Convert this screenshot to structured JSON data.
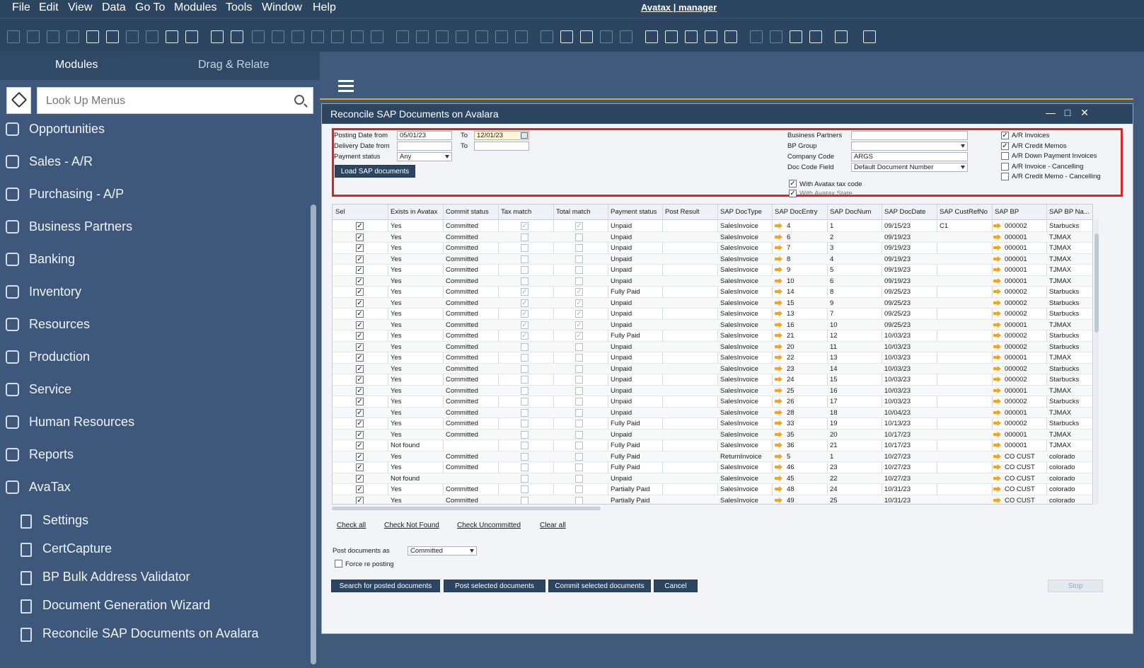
{
  "menubar": {
    "items": [
      "File",
      "Edit",
      "View",
      "Data",
      "Go To",
      "Modules",
      "Tools",
      "Window",
      "Help"
    ],
    "app_title": "Avatax | manager"
  },
  "left_panel": {
    "tabs": [
      "Modules",
      "Drag & Relate"
    ],
    "lookup_placeholder": "Look Up Menus",
    "modules": [
      {
        "label": "Opportunities",
        "icon": "opportunities-icon"
      },
      {
        "label": "Sales - A/R",
        "icon": "sales-icon"
      },
      {
        "label": "Purchasing - A/P",
        "icon": "purchasing-icon"
      },
      {
        "label": "Business Partners",
        "icon": "business-partners-icon"
      },
      {
        "label": "Banking",
        "icon": "banking-icon"
      },
      {
        "label": "Inventory",
        "icon": "inventory-icon"
      },
      {
        "label": "Resources",
        "icon": "resources-icon"
      },
      {
        "label": "Production",
        "icon": "production-icon"
      },
      {
        "label": "Service",
        "icon": "service-icon"
      },
      {
        "label": "Human Resources",
        "icon": "human-resources-icon"
      },
      {
        "label": "Reports",
        "icon": "reports-icon"
      },
      {
        "label": "AvaTax",
        "icon": "avatax-icon"
      }
    ],
    "avatax_sub": [
      "Settings",
      "CertCapture",
      "BP Bulk Address Validator",
      "Document Generation Wizard",
      "Reconcile SAP Documents on Avalara"
    ]
  },
  "window": {
    "title": "Reconcile SAP Documents on Avalara",
    "filters": {
      "posting_date_from_label": "Posting Date from",
      "posting_date_from": "05/01/23",
      "to_label": "To",
      "posting_date_to": "12/01/23",
      "delivery_date_from_label": "Delivery Date from",
      "delivery_date_from": "",
      "delivery_date_to": "",
      "payment_status_label": "Payment status",
      "payment_status": "Any",
      "load_button": "Load SAP documents",
      "business_partners_label": "Business Partners",
      "business_partners": "",
      "bp_group_label": "BP Group",
      "bp_group": "",
      "company_code_label": "Company Code",
      "company_code": "ARGS",
      "doc_code_field_label": "Doc Code Field",
      "doc_code_field": "Default Document Number",
      "with_avatax_tax_code": "With Avatax tax code",
      "with_avatax_state": "With Avatax State",
      "doc_types": [
        {
          "label": "A/R Invoices",
          "checked": true
        },
        {
          "label": "A/R Credit Memos",
          "checked": true
        },
        {
          "label": "A/R Down Payment Invoices",
          "checked": false
        },
        {
          "label": "A/R Invoice - Cancelling",
          "checked": false
        },
        {
          "label": "A/R Credit Memo - Cancelling",
          "checked": false
        }
      ]
    },
    "grid": {
      "columns": [
        "Sel",
        "Exists in Avatax",
        "Commit status",
        "Tax match",
        "Total match",
        "Payment status",
        "Post Result",
        "SAP DocType",
        "SAP DocEntry",
        "SAP DocNum",
        "SAP DocDate",
        "SAP CustRefNo",
        "SAP BP",
        "SAP BP Na..."
      ],
      "rows": [
        {
          "exists": "Yes",
          "commit": "Committed",
          "tax": true,
          "total": true,
          "pay": "Unpaid",
          "result": "",
          "type": "SalesInvoice",
          "entry": "4",
          "num": "1",
          "date": "09/15/23",
          "ref": "C1",
          "bp": "000002",
          "bpname": "Starbucks"
        },
        {
          "exists": "Yes",
          "commit": "Committed",
          "tax": false,
          "total": false,
          "pay": "Unpaid",
          "result": "",
          "type": "SalesInvoice",
          "entry": "6",
          "num": "2",
          "date": "09/19/23",
          "ref": "",
          "bp": "000001",
          "bpname": "TJMAX"
        },
        {
          "exists": "Yes",
          "commit": "Committed",
          "tax": false,
          "total": false,
          "pay": "Unpaid",
          "result": "",
          "type": "SalesInvoice",
          "entry": "7",
          "num": "3",
          "date": "09/19/23",
          "ref": "",
          "bp": "000001",
          "bpname": "TJMAX"
        },
        {
          "exists": "Yes",
          "commit": "Committed",
          "tax": false,
          "total": false,
          "pay": "Unpaid",
          "result": "",
          "type": "SalesInvoice",
          "entry": "8",
          "num": "4",
          "date": "09/19/23",
          "ref": "",
          "bp": "000001",
          "bpname": "TJMAX"
        },
        {
          "exists": "Yes",
          "commit": "Committed",
          "tax": false,
          "total": false,
          "pay": "Unpaid",
          "result": "",
          "type": "SalesInvoice",
          "entry": "9",
          "num": "5",
          "date": "09/19/23",
          "ref": "",
          "bp": "000001",
          "bpname": "TJMAX"
        },
        {
          "exists": "Yes",
          "commit": "Committed",
          "tax": false,
          "total": false,
          "pay": "Unpaid",
          "result": "",
          "type": "SalesInvoice",
          "entry": "10",
          "num": "6",
          "date": "09/19/23",
          "ref": "",
          "bp": "000001",
          "bpname": "TJMAX"
        },
        {
          "exists": "Yes",
          "commit": "Committed",
          "tax": true,
          "total": true,
          "pay": "Fully Paid",
          "result": "",
          "type": "SalesInvoice",
          "entry": "14",
          "num": "8",
          "date": "09/25/23",
          "ref": "",
          "bp": "000002",
          "bpname": "Starbucks"
        },
        {
          "exists": "Yes",
          "commit": "Committed",
          "tax": true,
          "total": true,
          "pay": "Unpaid",
          "result": "",
          "type": "SalesInvoice",
          "entry": "15",
          "num": "9",
          "date": "09/25/23",
          "ref": "",
          "bp": "000002",
          "bpname": "Starbucks"
        },
        {
          "exists": "Yes",
          "commit": "Committed",
          "tax": true,
          "total": true,
          "pay": "Unpaid",
          "result": "",
          "type": "SalesInvoice",
          "entry": "13",
          "num": "7",
          "date": "09/25/23",
          "ref": "",
          "bp": "000002",
          "bpname": "Starbucks"
        },
        {
          "exists": "Yes",
          "commit": "Committed",
          "tax": true,
          "total": true,
          "pay": "Unpaid",
          "result": "",
          "type": "SalesInvoice",
          "entry": "16",
          "num": "10",
          "date": "09/25/23",
          "ref": "",
          "bp": "000001",
          "bpname": "TJMAX"
        },
        {
          "exists": "Yes",
          "commit": "Committed",
          "tax": true,
          "total": true,
          "pay": "Fully Paid",
          "result": "",
          "type": "SalesInvoice",
          "entry": "21",
          "num": "12",
          "date": "10/03/23",
          "ref": "",
          "bp": "000002",
          "bpname": "Starbucks"
        },
        {
          "exists": "Yes",
          "commit": "Committed",
          "tax": false,
          "total": false,
          "pay": "Unpaid",
          "result": "",
          "type": "SalesInvoice",
          "entry": "20",
          "num": "11",
          "date": "10/03/23",
          "ref": "",
          "bp": "000002",
          "bpname": "Starbucks"
        },
        {
          "exists": "Yes",
          "commit": "Committed",
          "tax": false,
          "total": false,
          "pay": "Unpaid",
          "result": "",
          "type": "SalesInvoice",
          "entry": "22",
          "num": "13",
          "date": "10/03/23",
          "ref": "",
          "bp": "000001",
          "bpname": "TJMAX"
        },
        {
          "exists": "Yes",
          "commit": "Committed",
          "tax": false,
          "total": false,
          "pay": "Unpaid",
          "result": "",
          "type": "SalesInvoice",
          "entry": "23",
          "num": "14",
          "date": "10/03/23",
          "ref": "",
          "bp": "000002",
          "bpname": "Starbucks"
        },
        {
          "exists": "Yes",
          "commit": "Committed",
          "tax": false,
          "total": false,
          "pay": "Unpaid",
          "result": "",
          "type": "SalesInvoice",
          "entry": "24",
          "num": "15",
          "date": "10/03/23",
          "ref": "",
          "bp": "000002",
          "bpname": "Starbucks"
        },
        {
          "exists": "Yes",
          "commit": "Committed",
          "tax": false,
          "total": false,
          "pay": "Unpaid",
          "result": "",
          "type": "SalesInvoice",
          "entry": "25",
          "num": "16",
          "date": "10/03/23",
          "ref": "",
          "bp": "000001",
          "bpname": "TJMAX"
        },
        {
          "exists": "Yes",
          "commit": "Committed",
          "tax": false,
          "total": false,
          "pay": "Unpaid",
          "result": "",
          "type": "SalesInvoice",
          "entry": "26",
          "num": "17",
          "date": "10/03/23",
          "ref": "",
          "bp": "000002",
          "bpname": "Starbucks"
        },
        {
          "exists": "Yes",
          "commit": "Committed",
          "tax": false,
          "total": false,
          "pay": "Unpaid",
          "result": "",
          "type": "SalesInvoice",
          "entry": "28",
          "num": "18",
          "date": "10/04/23",
          "ref": "",
          "bp": "000001",
          "bpname": "TJMAX"
        },
        {
          "exists": "Yes",
          "commit": "Committed",
          "tax": false,
          "total": false,
          "pay": "Fully Paid",
          "result": "",
          "type": "SalesInvoice",
          "entry": "33",
          "num": "19",
          "date": "10/13/23",
          "ref": "",
          "bp": "000002",
          "bpname": "Starbucks"
        },
        {
          "exists": "Yes",
          "commit": "Committed",
          "tax": false,
          "total": false,
          "pay": "Unpaid",
          "result": "",
          "type": "SalesInvoice",
          "entry": "35",
          "num": "20",
          "date": "10/17/23",
          "ref": "",
          "bp": "000001",
          "bpname": "TJMAX"
        },
        {
          "exists": "Not found",
          "commit": "",
          "tax": false,
          "total": false,
          "pay": "Fully Paid",
          "result": "",
          "type": "SalesInvoice",
          "entry": "36",
          "num": "21",
          "date": "10/17/23",
          "ref": "",
          "bp": "000001",
          "bpname": "TJMAX"
        },
        {
          "exists": "Yes",
          "commit": "Committed",
          "tax": false,
          "total": false,
          "pay": "Fully Paid",
          "result": "",
          "type": "ReturnInvoice",
          "entry": "5",
          "num": "1",
          "date": "10/27/23",
          "ref": "",
          "bp": "CO CUST",
          "bpname": "colorado"
        },
        {
          "exists": "Yes",
          "commit": "Committed",
          "tax": false,
          "total": false,
          "pay": "Fully Paid",
          "result": "",
          "type": "SalesInvoice",
          "entry": "46",
          "num": "23",
          "date": "10/27/23",
          "ref": "",
          "bp": "CO CUST",
          "bpname": "colorado"
        },
        {
          "exists": "Not found",
          "commit": "",
          "tax": false,
          "total": false,
          "pay": "Unpaid",
          "result": "",
          "type": "SalesInvoice",
          "entry": "45",
          "num": "22",
          "date": "10/27/23",
          "ref": "",
          "bp": "CO CUST",
          "bpname": "colorado"
        },
        {
          "exists": "Yes",
          "commit": "Committed",
          "tax": false,
          "total": false,
          "pay": "Partially Paid",
          "result": "",
          "type": "SalesInvoice",
          "entry": "48",
          "num": "24",
          "date": "10/31/23",
          "ref": "",
          "bp": "CO CUST",
          "bpname": "colorado"
        },
        {
          "exists": "Yes",
          "commit": "Committed",
          "tax": false,
          "total": false,
          "pay": "Partially Paid",
          "result": "",
          "type": "SalesInvoice",
          "entry": "49",
          "num": "25",
          "date": "10/31/23",
          "ref": "",
          "bp": "CO CUST",
          "bpname": "colorado"
        }
      ]
    },
    "links": [
      "Check all",
      "Check Not Found",
      "Check Uncommitted",
      "Clear all"
    ],
    "post_documents_as_label": "Post documents as",
    "post_documents_as": "Committed",
    "force_reposting": "Force re posting",
    "buttons": [
      "Search for posted documents",
      "Post selected documents",
      "Commit selected documents",
      "Cancel"
    ],
    "stop_button": "Stop"
  },
  "colors": {
    "chrome": "#2c4561",
    "panel": "#3d587a",
    "accent_line": "#e6a524",
    "highlight_box": "#e1201f",
    "link_arrow": "#f2a51d"
  }
}
